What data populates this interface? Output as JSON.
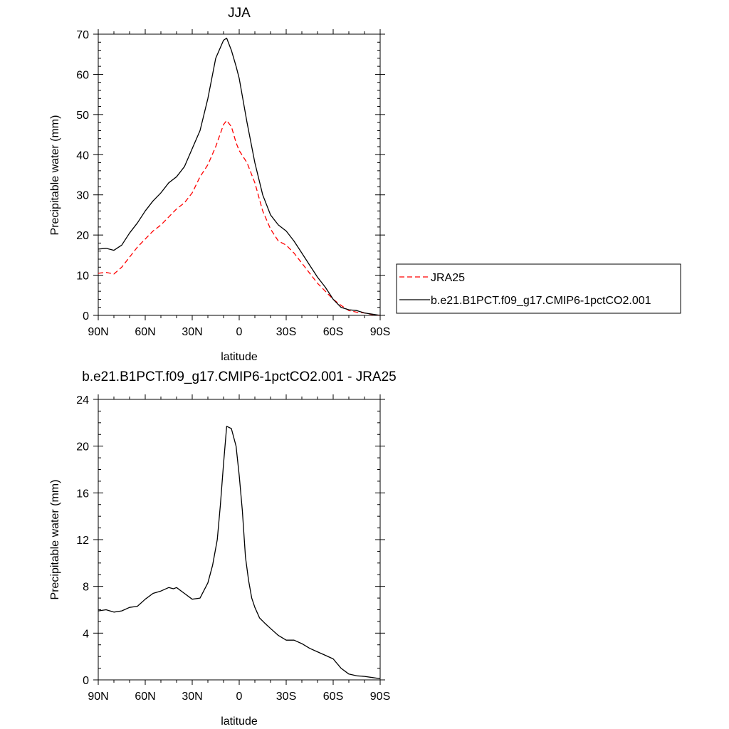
{
  "chart_data": [
    {
      "type": "line",
      "title": "JJA",
      "xlabel": "latitude",
      "ylabel": "Precipitable water (mm)",
      "xlim": [
        90,
        -90
      ],
      "ylim": [
        0,
        70
      ],
      "x_ticks": [
        90,
        60,
        30,
        0,
        -30,
        -60,
        -90
      ],
      "x_tick_labels": [
        "90N",
        "60N",
        "30N",
        "0",
        "30S",
        "60S",
        "90S"
      ],
      "y_ticks": [
        0,
        10,
        20,
        30,
        40,
        50,
        60,
        70
      ],
      "y_tick_labels": [
        "0",
        "10",
        "20",
        "30",
        "40",
        "50",
        "60",
        "70"
      ],
      "grid": false,
      "legend_position": "right",
      "series": [
        {
          "name": "JRA25",
          "color": "#ff0000",
          "style": "dashed",
          "x": [
            90,
            85,
            80,
            75,
            70,
            65,
            60,
            55,
            50,
            45,
            40,
            35,
            30,
            25,
            20,
            15,
            10,
            8,
            5,
            2,
            0,
            -5,
            -10,
            -15,
            -20,
            -25,
            -30,
            -35,
            -40,
            -45,
            -50,
            -55,
            -60,
            -65,
            -70,
            -75,
            -80,
            -85,
            -90
          ],
          "y": [
            10.5,
            10.7,
            10.3,
            12,
            14.5,
            17,
            19,
            21,
            22.5,
            24.5,
            26.5,
            28,
            30.5,
            34.5,
            37.5,
            42,
            47.5,
            48.5,
            47,
            43,
            41,
            38,
            33,
            26,
            21.5,
            18.5,
            17.5,
            15.5,
            13,
            10.5,
            8,
            6,
            4,
            2.5,
            1.2,
            0.8,
            0.6,
            0.2,
            0
          ]
        },
        {
          "name": "b.e21.B1PCT.f09_g17.CMIP6-1pctCO2.001",
          "color": "#000000",
          "style": "solid",
          "x": [
            90,
            85,
            80,
            75,
            70,
            65,
            60,
            55,
            50,
            45,
            40,
            35,
            30,
            25,
            20,
            15,
            10,
            8,
            5,
            2,
            0,
            -5,
            -10,
            -15,
            -20,
            -25,
            -30,
            -35,
            -40,
            -45,
            -50,
            -55,
            -60,
            -65,
            -70,
            -75,
            -80,
            -85,
            -90
          ],
          "y": [
            16.5,
            16.7,
            16.2,
            17.5,
            20.5,
            23,
            26,
            28.5,
            30.5,
            33,
            34.5,
            37,
            41.5,
            46,
            54,
            64,
            68.5,
            69,
            66,
            62,
            59,
            48,
            38,
            30,
            25,
            22.5,
            21,
            18.5,
            15.5,
            12.5,
            9.5,
            7,
            4,
            2,
            1.4,
            1.2,
            0.6,
            0.3,
            0
          ]
        }
      ]
    },
    {
      "type": "line",
      "title": "b.e21.B1PCT.f09_g17.CMIP6-1pctCO2.001 - JRA25",
      "xlabel": "latitude",
      "ylabel": "Precipitable water (mm)",
      "xlim": [
        90,
        -90
      ],
      "ylim": [
        0,
        24
      ],
      "x_ticks": [
        90,
        60,
        30,
        0,
        -30,
        -60,
        -90
      ],
      "x_tick_labels": [
        "90N",
        "60N",
        "30N",
        "0",
        "30S",
        "60S",
        "90S"
      ],
      "y_ticks": [
        0,
        4,
        8,
        12,
        16,
        20,
        24
      ],
      "y_tick_labels": [
        "0",
        "4",
        "8",
        "12",
        "16",
        "20",
        "24"
      ],
      "grid": false,
      "series": [
        {
          "color": "#000000",
          "style": "solid",
          "x": [
            90,
            85,
            80,
            75,
            70,
            65,
            60,
            55,
            50,
            45,
            42,
            40,
            35,
            30,
            25,
            20,
            17,
            14,
            12,
            10,
            8,
            5,
            2,
            0,
            -2,
            -4,
            -6,
            -8,
            -10,
            -13,
            -16,
            -20,
            -25,
            -30,
            -35,
            -40,
            -45,
            -50,
            -55,
            -60,
            -65,
            -70,
            -75,
            -80,
            -85,
            -90
          ],
          "y": [
            5.9,
            6.0,
            5.8,
            5.9,
            6.2,
            6.3,
            6.9,
            7.4,
            7.6,
            7.9,
            7.8,
            7.9,
            7.4,
            6.9,
            7.0,
            8.3,
            9.8,
            12.0,
            15.0,
            18.5,
            21.7,
            21.5,
            20.0,
            17.5,
            14.5,
            10.5,
            8.5,
            7.0,
            6.2,
            5.3,
            4.9,
            4.4,
            3.8,
            3.4,
            3.4,
            3.1,
            2.7,
            2.4,
            2.1,
            1.8,
            1.0,
            0.5,
            0.35,
            0.3,
            0.2,
            0.1
          ]
        }
      ]
    }
  ]
}
